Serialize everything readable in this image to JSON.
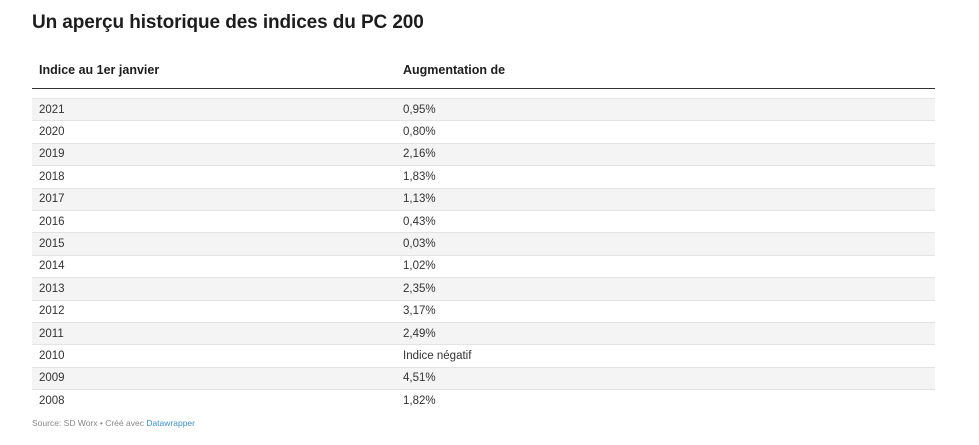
{
  "chart_data": {
    "type": "table",
    "title": "Un aperçu historique des indices du PC 200",
    "columns": [
      "Indice au 1er janvier",
      "Augmentation de"
    ],
    "rows": [
      [
        "2021",
        "0,95%"
      ],
      [
        "2020",
        "0,80%"
      ],
      [
        "2019",
        "2,16%"
      ],
      [
        "2018",
        "1,83%"
      ],
      [
        "2017",
        "1,13%"
      ],
      [
        "2016",
        "0,43%"
      ],
      [
        "2015",
        "0,03%"
      ],
      [
        "2014",
        "1,02%"
      ],
      [
        "2013",
        "2,35%"
      ],
      [
        "2012",
        "3,17%"
      ],
      [
        "2011",
        "2,49%"
      ],
      [
        "2010",
        "Indice négatif"
      ],
      [
        "2009",
        "4,51%"
      ],
      [
        "2008",
        "1,82%"
      ]
    ],
    "striped_rows": true
  },
  "footer": {
    "source": "Source: SD Worx • Créé avec ",
    "tool": "Datawrapper"
  },
  "colors": {
    "stripe": "#f4f4f4",
    "link": "#3f8fc6",
    "header_rule": "#333333"
  }
}
